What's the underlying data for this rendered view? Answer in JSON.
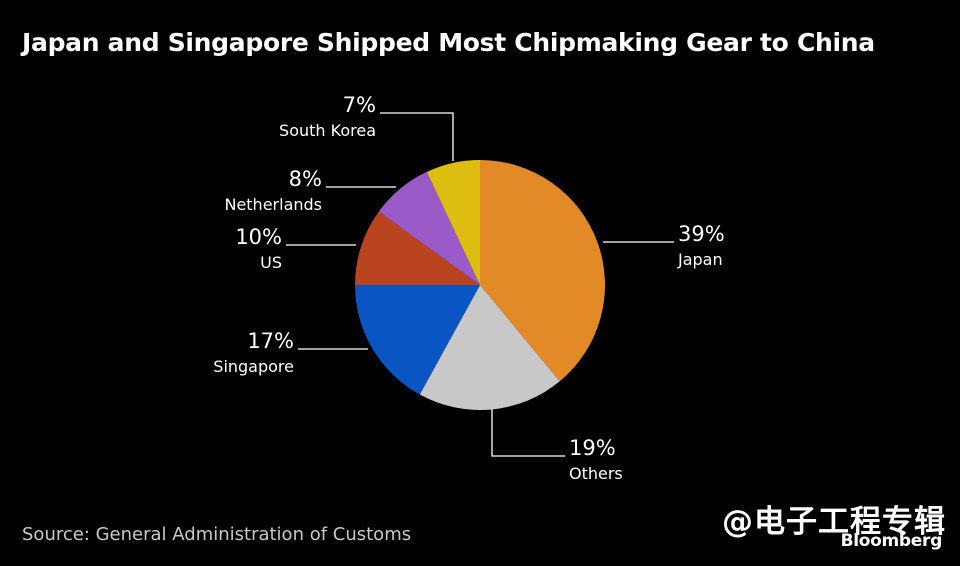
{
  "title": "Japan and Singapore Shipped Most Chipmaking Gear to China",
  "source": "Source: General Administration of Customs",
  "watermark": "@电子工程专辑",
  "brand": "Bloomberg",
  "chart_data": {
    "type": "pie",
    "title": "Japan and Singapore Shipped Most Chipmaking Gear to China",
    "slices": [
      {
        "label": "Japan",
        "value": 39,
        "display": "39%",
        "color": "#e28a27"
      },
      {
        "label": "Others",
        "value": 19,
        "display": "19%",
        "color": "#c8c8c8"
      },
      {
        "label": "Singapore",
        "value": 17,
        "display": "17%",
        "color": "#0a55c4"
      },
      {
        "label": "US",
        "value": 10,
        "display": "10%",
        "color": "#b9441f"
      },
      {
        "label": "Netherlands",
        "value": 8,
        "display": "8%",
        "color": "#9a5ac8"
      },
      {
        "label": "South Korea",
        "value": 7,
        "display": "7%",
        "color": "#dcbd10"
      }
    ],
    "start": "12 o'clock",
    "direction": "clockwise",
    "legend": "none"
  }
}
